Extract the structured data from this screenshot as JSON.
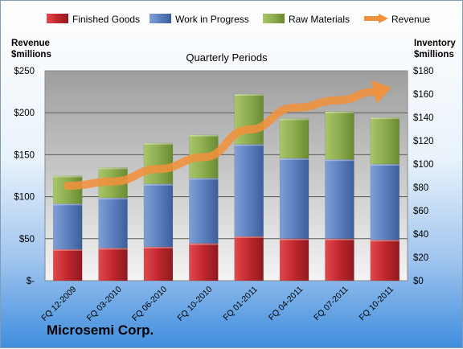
{
  "company": "Microsemi Corp.",
  "colors": {
    "finished": "#c0272d",
    "wip": "#5b7fbf",
    "raw": "#8cac4d",
    "revenue": "#f0913c"
  },
  "chart_data": {
    "type": "bar",
    "stacked": true,
    "title": "Quarterly Periods",
    "ylabel_left": [
      "Revenue",
      "$millions"
    ],
    "ylabel_right": [
      "Inventory",
      "$millions"
    ],
    "categories": [
      "FQ 12-2009",
      "FQ 03-2010",
      "FQ 06-2010",
      "FQ 10-2010",
      "FQ 01-2011",
      "FQ 04-2011",
      "FQ 07-2011",
      "FQ 10-2011"
    ],
    "series": [
      {
        "name": "Finished Goods",
        "axis": "right",
        "values": [
          27,
          28,
          29,
          32,
          38,
          36,
          36,
          35
        ]
      },
      {
        "name": "Work in Progress",
        "axis": "right",
        "values": [
          39,
          43,
          54,
          56,
          79,
          69,
          68,
          65
        ]
      },
      {
        "name": "Raw Materials",
        "axis": "right",
        "values": [
          24,
          26,
          35,
          37,
          43,
          34,
          41,
          40
        ]
      },
      {
        "name": "Revenue",
        "type": "line",
        "axis": "left",
        "values": [
          113,
          118,
          133,
          147,
          180,
          206,
          215,
          228
        ]
      }
    ],
    "y_left": {
      "min": 0,
      "max": 250,
      "ticks": [
        0,
        50,
        100,
        150,
        200,
        250
      ],
      "tick_labels": [
        "$-",
        "$50",
        "$100",
        "$150",
        "$200",
        "$250"
      ]
    },
    "y_right": {
      "min": 0,
      "max": 180,
      "ticks": [
        0,
        20,
        40,
        60,
        80,
        100,
        120,
        140,
        160,
        180
      ],
      "tick_labels": [
        "$0",
        "$20",
        "$40",
        "$60",
        "$80",
        "$100",
        "$120",
        "$140",
        "$160",
        "$180"
      ]
    },
    "grid": true,
    "legend_position": "top"
  }
}
